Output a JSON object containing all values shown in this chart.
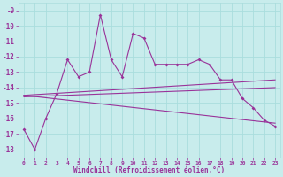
{
  "xlabel": "Windchill (Refroidissement éolien,°C)",
  "bg_color": "#c8ecec",
  "grid_color": "#aadddd",
  "line_color": "#993399",
  "ylim": [
    -18.5,
    -8.5
  ],
  "xlim": [
    -0.5,
    23.5
  ],
  "yticks": [
    -18,
    -17,
    -16,
    -15,
    -14,
    -13,
    -12,
    -11,
    -10,
    -9
  ],
  "xticks": [
    0,
    1,
    2,
    3,
    4,
    5,
    6,
    7,
    8,
    9,
    10,
    11,
    12,
    13,
    14,
    15,
    16,
    17,
    18,
    19,
    20,
    21,
    22,
    23
  ],
  "curve1_x": [
    0,
    1,
    2,
    3,
    4,
    5,
    6,
    7,
    8,
    9,
    10,
    11,
    12,
    13,
    14,
    15,
    16,
    17,
    18,
    19,
    20,
    21,
    22,
    23
  ],
  "curve1_y": [
    -16.7,
    -18.0,
    -16.0,
    -14.4,
    -12.2,
    -13.3,
    -13.0,
    -9.3,
    -12.2,
    -13.3,
    -10.5,
    -10.8,
    -12.5,
    -12.5,
    -12.5,
    -12.5,
    -12.2,
    -12.5,
    -13.5,
    -13.5,
    -14.7,
    -15.3,
    -16.1,
    -16.5
  ],
  "curve2_x": [
    0,
    23
  ],
  "curve2_y": [
    -14.5,
    -13.5
  ],
  "curve3_x": [
    0,
    23
  ],
  "curve3_y": [
    -14.6,
    -14.0
  ],
  "curve4_x": [
    0,
    23
  ],
  "curve4_y": [
    -14.5,
    -16.3
  ]
}
